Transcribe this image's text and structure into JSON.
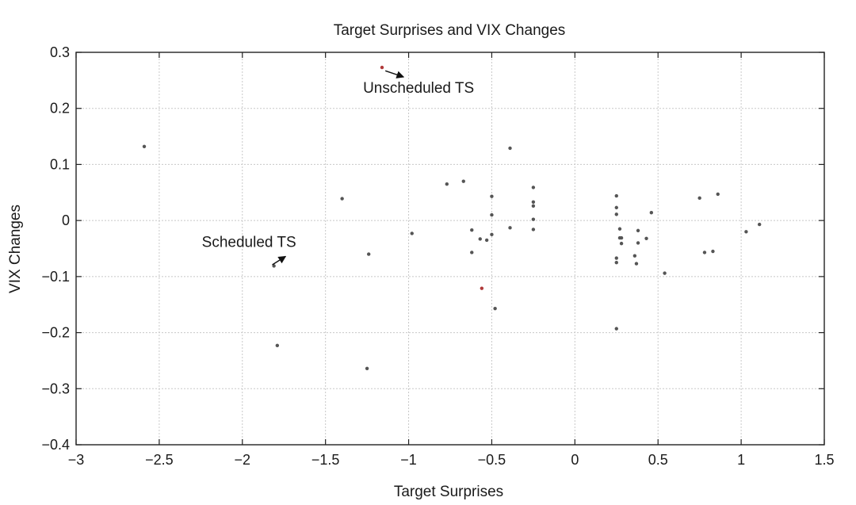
{
  "chart_data": {
    "type": "scatter",
    "title": "Target Surprises and VIX Changes",
    "xlabel": "Target Surprises",
    "ylabel": "VIX Changes",
    "xlim": [
      -3,
      1.5
    ],
    "ylim": [
      -0.4,
      0.3
    ],
    "grid": true,
    "xticks": [
      -3,
      -2.5,
      -2,
      -1.5,
      -1,
      -0.5,
      0,
      0.5,
      1,
      1.5
    ],
    "xtick_labels": [
      "−3",
      "−2.5",
      "−2",
      "−1.5",
      "−1",
      "−0.5",
      "0",
      "0.5",
      "1",
      "1.5"
    ],
    "yticks": [
      -0.4,
      -0.3,
      -0.2,
      -0.1,
      0,
      0.1,
      0.2,
      0.3
    ],
    "ytick_labels": [
      "−0.4",
      "−0.3",
      "−0.2",
      "−0.1",
      "0",
      "0.1",
      "0.2",
      "0.3"
    ],
    "series": [
      {
        "name": "Scheduled TS",
        "color": "#555555",
        "points": [
          [
            -2.59,
            0.132
          ],
          [
            -1.4,
            0.039
          ],
          [
            -1.24,
            -0.06
          ],
          [
            -1.79,
            -0.223
          ],
          [
            -1.25,
            -0.264
          ],
          [
            -0.98,
            -0.023
          ],
          [
            -0.77,
            0.065
          ],
          [
            -0.67,
            0.07
          ],
          [
            -0.62,
            -0.017
          ],
          [
            -0.62,
            -0.057
          ],
          [
            -0.57,
            -0.033
          ],
          [
            -0.53,
            -0.035
          ],
          [
            -0.5,
            0.043
          ],
          [
            -0.5,
            0.01
          ],
          [
            -0.5,
            -0.025
          ],
          [
            -0.48,
            -0.157
          ],
          [
            -0.39,
            0.129
          ],
          [
            -0.39,
            -0.013
          ],
          [
            -0.25,
            0.059
          ],
          [
            -0.25,
            0.033
          ],
          [
            -0.25,
            0.026
          ],
          [
            -0.25,
            0.002
          ],
          [
            -0.25,
            -0.016
          ],
          [
            0.25,
            0.044
          ],
          [
            0.25,
            0.023
          ],
          [
            0.25,
            0.011
          ],
          [
            0.25,
            -0.067
          ],
          [
            0.25,
            -0.075
          ],
          [
            0.25,
            -0.193
          ],
          [
            0.27,
            -0.015
          ],
          [
            0.27,
            -0.031
          ],
          [
            0.28,
            -0.031
          ],
          [
            0.28,
            -0.041
          ],
          [
            0.36,
            -0.063
          ],
          [
            0.37,
            -0.077
          ],
          [
            0.38,
            -0.018
          ],
          [
            0.38,
            -0.04
          ],
          [
            0.43,
            -0.032
          ],
          [
            0.46,
            0.014
          ],
          [
            0.54,
            -0.094
          ],
          [
            0.75,
            0.04
          ],
          [
            0.78,
            -0.057
          ],
          [
            0.83,
            -0.055
          ],
          [
            0.86,
            0.047
          ],
          [
            1.03,
            -0.02
          ],
          [
            1.11,
            -0.007
          ],
          [
            -1.81,
            -0.081
          ]
        ]
      },
      {
        "name": "Unscheduled TS",
        "color": "#b03a3a",
        "points": [
          [
            -1.16,
            0.273
          ],
          [
            -0.56,
            -0.121
          ]
        ]
      }
    ],
    "annotations": [
      {
        "text": "Unscheduled TS",
        "at": [
          -0.94,
          0.228
        ],
        "arrow_from": [
          -1.14,
          0.267
        ],
        "arrow_to": [
          -1.03,
          0.256
        ]
      },
      {
        "text": "Scheduled TS",
        "at": [
          -1.96,
          -0.047
        ],
        "arrow_from": [
          -1.82,
          -0.079
        ],
        "arrow_to": [
          -1.74,
          -0.064
        ]
      }
    ]
  }
}
